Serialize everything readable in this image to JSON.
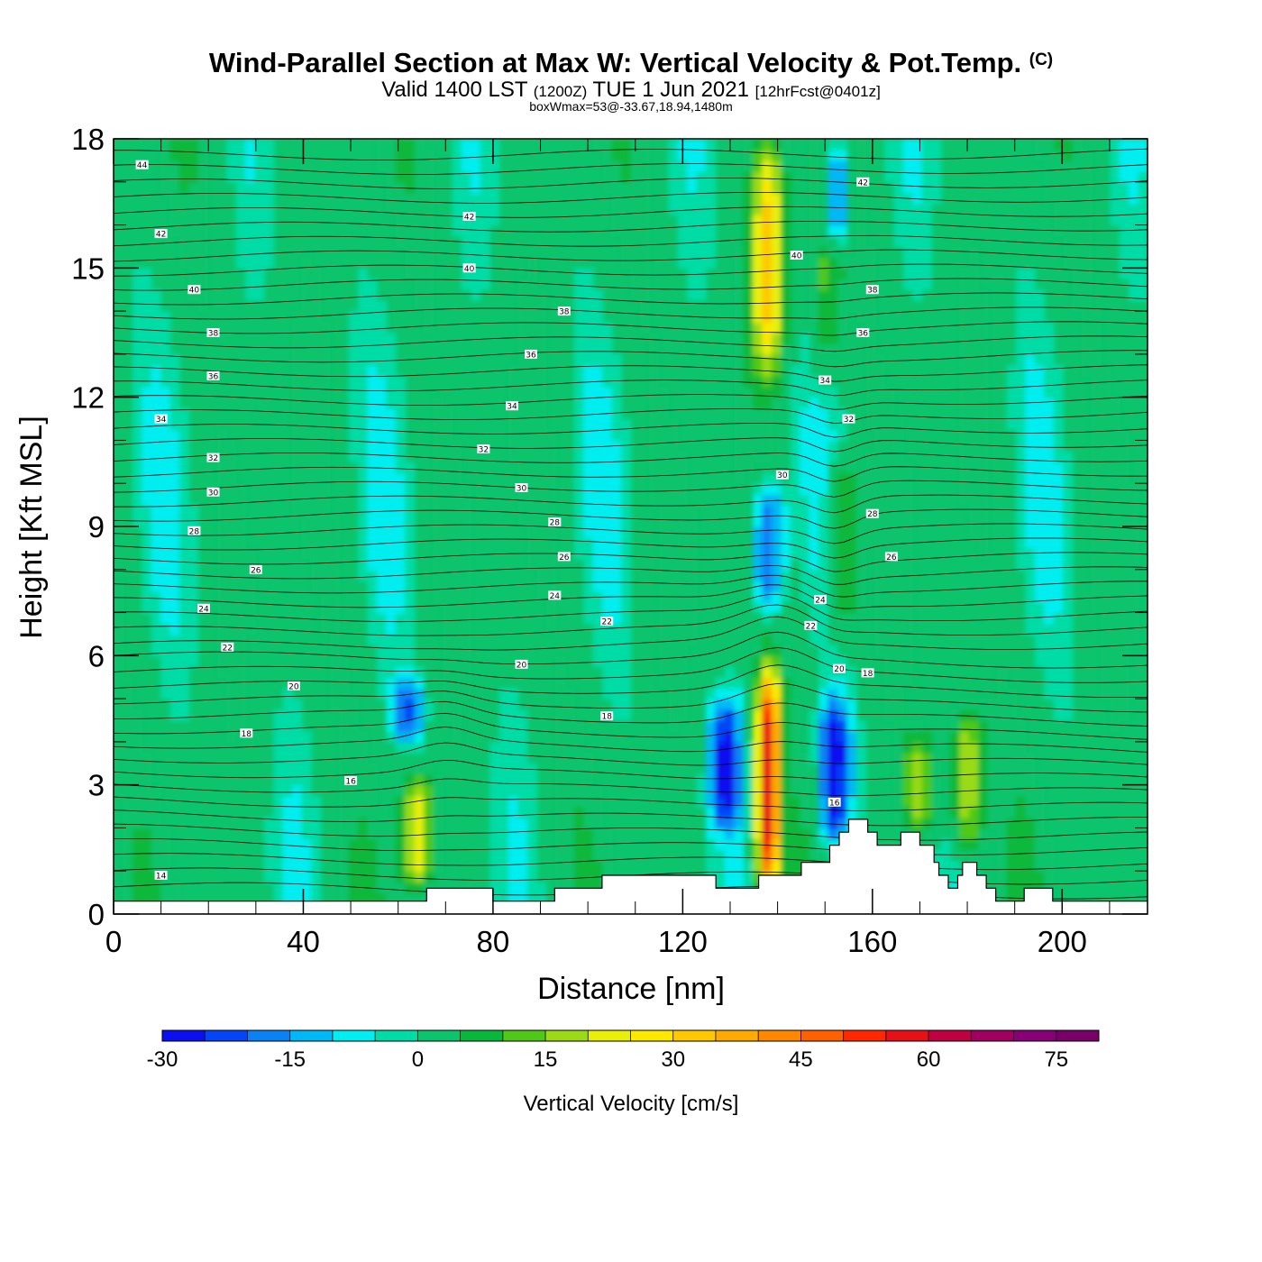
{
  "header": {
    "title": "Wind-Parallel Section at Max W: Vertical Velocity & Pot.Temp.",
    "copyright_mark": "(C)",
    "valid_prefix": "Valid 1400 LST",
    "valid_utc": "(1200Z)",
    "valid_date": "TUE 1 Jun 2021",
    "valid_forecast": "[12hrFcst@0401z]",
    "box_info": "boxWmax=53@-33.67,18.94,1480m"
  },
  "chart_data": {
    "type": "heatmap",
    "title": "Wind-Parallel Section at Max W: Vertical Velocity & Pot.Temp.",
    "xlabel": "Distance [nm]",
    "ylabel": "Height [Kft MSL]",
    "xlim": [
      0,
      218
    ],
    "ylim": [
      0,
      18
    ],
    "xticks": [
      0,
      40,
      80,
      120,
      160,
      200
    ],
    "yticks": [
      0,
      3,
      6,
      9,
      12,
      15,
      18
    ],
    "colorbar": {
      "label": "Vertical Velocity [cm/s]",
      "min": -30,
      "max": 80,
      "step": 5,
      "ticks": [
        -30,
        -15,
        0,
        15,
        30,
        45,
        60,
        75
      ],
      "colors": [
        "#0a10f0",
        "#0545f8",
        "#0a82f6",
        "#00b8f5",
        "#00eef0",
        "#00dca5",
        "#0bc46c",
        "#08b83a",
        "#4fc818",
        "#9ada16",
        "#e8f00a",
        "#ffe800",
        "#ffc800",
        "#ffaa00",
        "#ff8800",
        "#ff6000",
        "#ff2800",
        "#e81018",
        "#c00040",
        "#a00060",
        "#880078",
        "#780068"
      ]
    },
    "terrain_profile": [
      [
        0,
        0.3
      ],
      [
        66,
        0.3
      ],
      [
        66,
        0.6
      ],
      [
        80,
        0.6
      ],
      [
        80,
        0.3
      ],
      [
        93,
        0.3
      ],
      [
        93,
        0.6
      ],
      [
        103,
        0.6
      ],
      [
        103,
        0.9
      ],
      [
        127,
        0.9
      ],
      [
        127,
        0.6
      ],
      [
        136,
        0.6
      ],
      [
        136,
        0.9
      ],
      [
        145,
        0.9
      ],
      [
        145,
        1.2
      ],
      [
        151,
        1.2
      ],
      [
        151,
        1.6
      ],
      [
        153,
        1.6
      ],
      [
        153,
        1.9
      ],
      [
        155,
        1.9
      ],
      [
        155,
        2.2
      ],
      [
        159,
        2.2
      ],
      [
        159,
        1.9
      ],
      [
        161,
        1.9
      ],
      [
        161,
        1.6
      ],
      [
        166,
        1.6
      ],
      [
        166,
        1.9
      ],
      [
        170,
        1.9
      ],
      [
        170,
        1.6
      ],
      [
        173,
        1.6
      ],
      [
        173,
        1.2
      ],
      [
        174,
        1.2
      ],
      [
        174,
        0.9
      ],
      [
        176,
        0.9
      ],
      [
        176,
        0.6
      ],
      [
        178,
        0.6
      ],
      [
        178,
        0.9
      ],
      [
        179,
        0.9
      ],
      [
        179,
        1.2
      ],
      [
        182,
        1.2
      ],
      [
        182,
        0.9
      ],
      [
        184,
        0.9
      ],
      [
        184,
        0.6
      ],
      [
        186,
        0.6
      ],
      [
        186,
        0.3
      ],
      [
        192,
        0.3
      ],
      [
        192,
        0.6
      ],
      [
        198,
        0.6
      ],
      [
        198,
        0.3
      ],
      [
        218,
        0.3
      ]
    ],
    "updrafts": [
      {
        "x": 138,
        "z_bottom": 0.5,
        "z_top": 5.6,
        "w_peak": 60
      },
      {
        "x": 138,
        "z_bottom": 12.5,
        "z_top": 18,
        "w_peak": 30
      },
      {
        "x": 64,
        "z_bottom": 0.6,
        "z_top": 3.2,
        "w_peak": 25
      },
      {
        "x": 180,
        "z_bottom": 1.4,
        "z_top": 4.8,
        "w_peak": 22
      },
      {
        "x": 170,
        "z_bottom": 1.8,
        "z_top": 4.2,
        "w_peak": 18
      },
      {
        "x": 154,
        "z_bottom": 6.5,
        "z_top": 10.5,
        "w_peak": 15
      },
      {
        "x": 150,
        "z_bottom": 12.5,
        "z_top": 18,
        "w_peak": 12
      }
    ],
    "downdrafts": [
      {
        "x": 152,
        "z_bottom": 1.6,
        "z_top": 5.0,
        "w_min": -30
      },
      {
        "x": 129,
        "z_bottom": 2.0,
        "z_top": 5.0,
        "w_min": -25
      },
      {
        "x": 138,
        "z_bottom": 7.0,
        "z_top": 10.0,
        "w_min": -22
      },
      {
        "x": 152,
        "z_bottom": 15.5,
        "z_top": 18,
        "w_min": -25
      },
      {
        "x": 62,
        "z_bottom": 4.0,
        "z_top": 5.5,
        "w_min": -18
      }
    ],
    "isentropes": {
      "label": "Potential Temperature",
      "label_positions": [
        {
          "value": "44",
          "x": 6,
          "z": 17.4
        },
        {
          "value": "42",
          "x": 10,
          "z": 15.8
        },
        {
          "value": "40",
          "x": 17,
          "z": 14.5
        },
        {
          "value": "38",
          "x": 21,
          "z": 13.5
        },
        {
          "value": "36",
          "x": 21,
          "z": 12.5
        },
        {
          "value": "34",
          "x": 10,
          "z": 11.5
        },
        {
          "value": "32",
          "x": 21,
          "z": 10.6
        },
        {
          "value": "30",
          "x": 21,
          "z": 9.8
        },
        {
          "value": "28",
          "x": 17,
          "z": 8.9
        },
        {
          "value": "26",
          "x": 30,
          "z": 8.0
        },
        {
          "value": "24",
          "x": 19,
          "z": 7.1
        },
        {
          "value": "22",
          "x": 24,
          "z": 6.2
        },
        {
          "value": "20",
          "x": 38,
          "z": 5.3
        },
        {
          "value": "18",
          "x": 28,
          "z": 4.2
        },
        {
          "value": "16",
          "x": 50,
          "z": 3.1
        },
        {
          "value": "14",
          "x": 10,
          "z": 0.9
        },
        {
          "value": "42",
          "x": 75,
          "z": 16.2
        },
        {
          "value": "40",
          "x": 75,
          "z": 15.0
        },
        {
          "value": "38",
          "x": 95,
          "z": 14.0
        },
        {
          "value": "36",
          "x": 88,
          "z": 13.0
        },
        {
          "value": "34",
          "x": 84,
          "z": 11.8
        },
        {
          "value": "32",
          "x": 78,
          "z": 10.8
        },
        {
          "value": "30",
          "x": 86,
          "z": 9.9
        },
        {
          "value": "28",
          "x": 93,
          "z": 9.1
        },
        {
          "value": "26",
          "x": 95,
          "z": 8.3
        },
        {
          "value": "24",
          "x": 93,
          "z": 7.4
        },
        {
          "value": "22",
          "x": 104,
          "z": 6.8
        },
        {
          "value": "20",
          "x": 86,
          "z": 5.8
        },
        {
          "value": "18",
          "x": 104,
          "z": 4.6
        },
        {
          "value": "42",
          "x": 158,
          "z": 17.0
        },
        {
          "value": "40",
          "x": 144,
          "z": 15.3
        },
        {
          "value": "38",
          "x": 160,
          "z": 14.5
        },
        {
          "value": "36",
          "x": 158,
          "z": 13.5
        },
        {
          "value": "34",
          "x": 150,
          "z": 12.4
        },
        {
          "value": "32",
          "x": 155,
          "z": 11.5
        },
        {
          "value": "30",
          "x": 141,
          "z": 10.2
        },
        {
          "value": "28",
          "x": 160,
          "z": 9.3
        },
        {
          "value": "26",
          "x": 164,
          "z": 8.3
        },
        {
          "value": "24",
          "x": 149,
          "z": 7.3
        },
        {
          "value": "22",
          "x": 147,
          "z": 6.7
        },
        {
          "value": "20",
          "x": 153,
          "z": 5.7
        },
        {
          "value": "18",
          "x": 159,
          "z": 5.6
        },
        {
          "value": "16",
          "x": 152,
          "z": 2.6
        }
      ]
    }
  }
}
